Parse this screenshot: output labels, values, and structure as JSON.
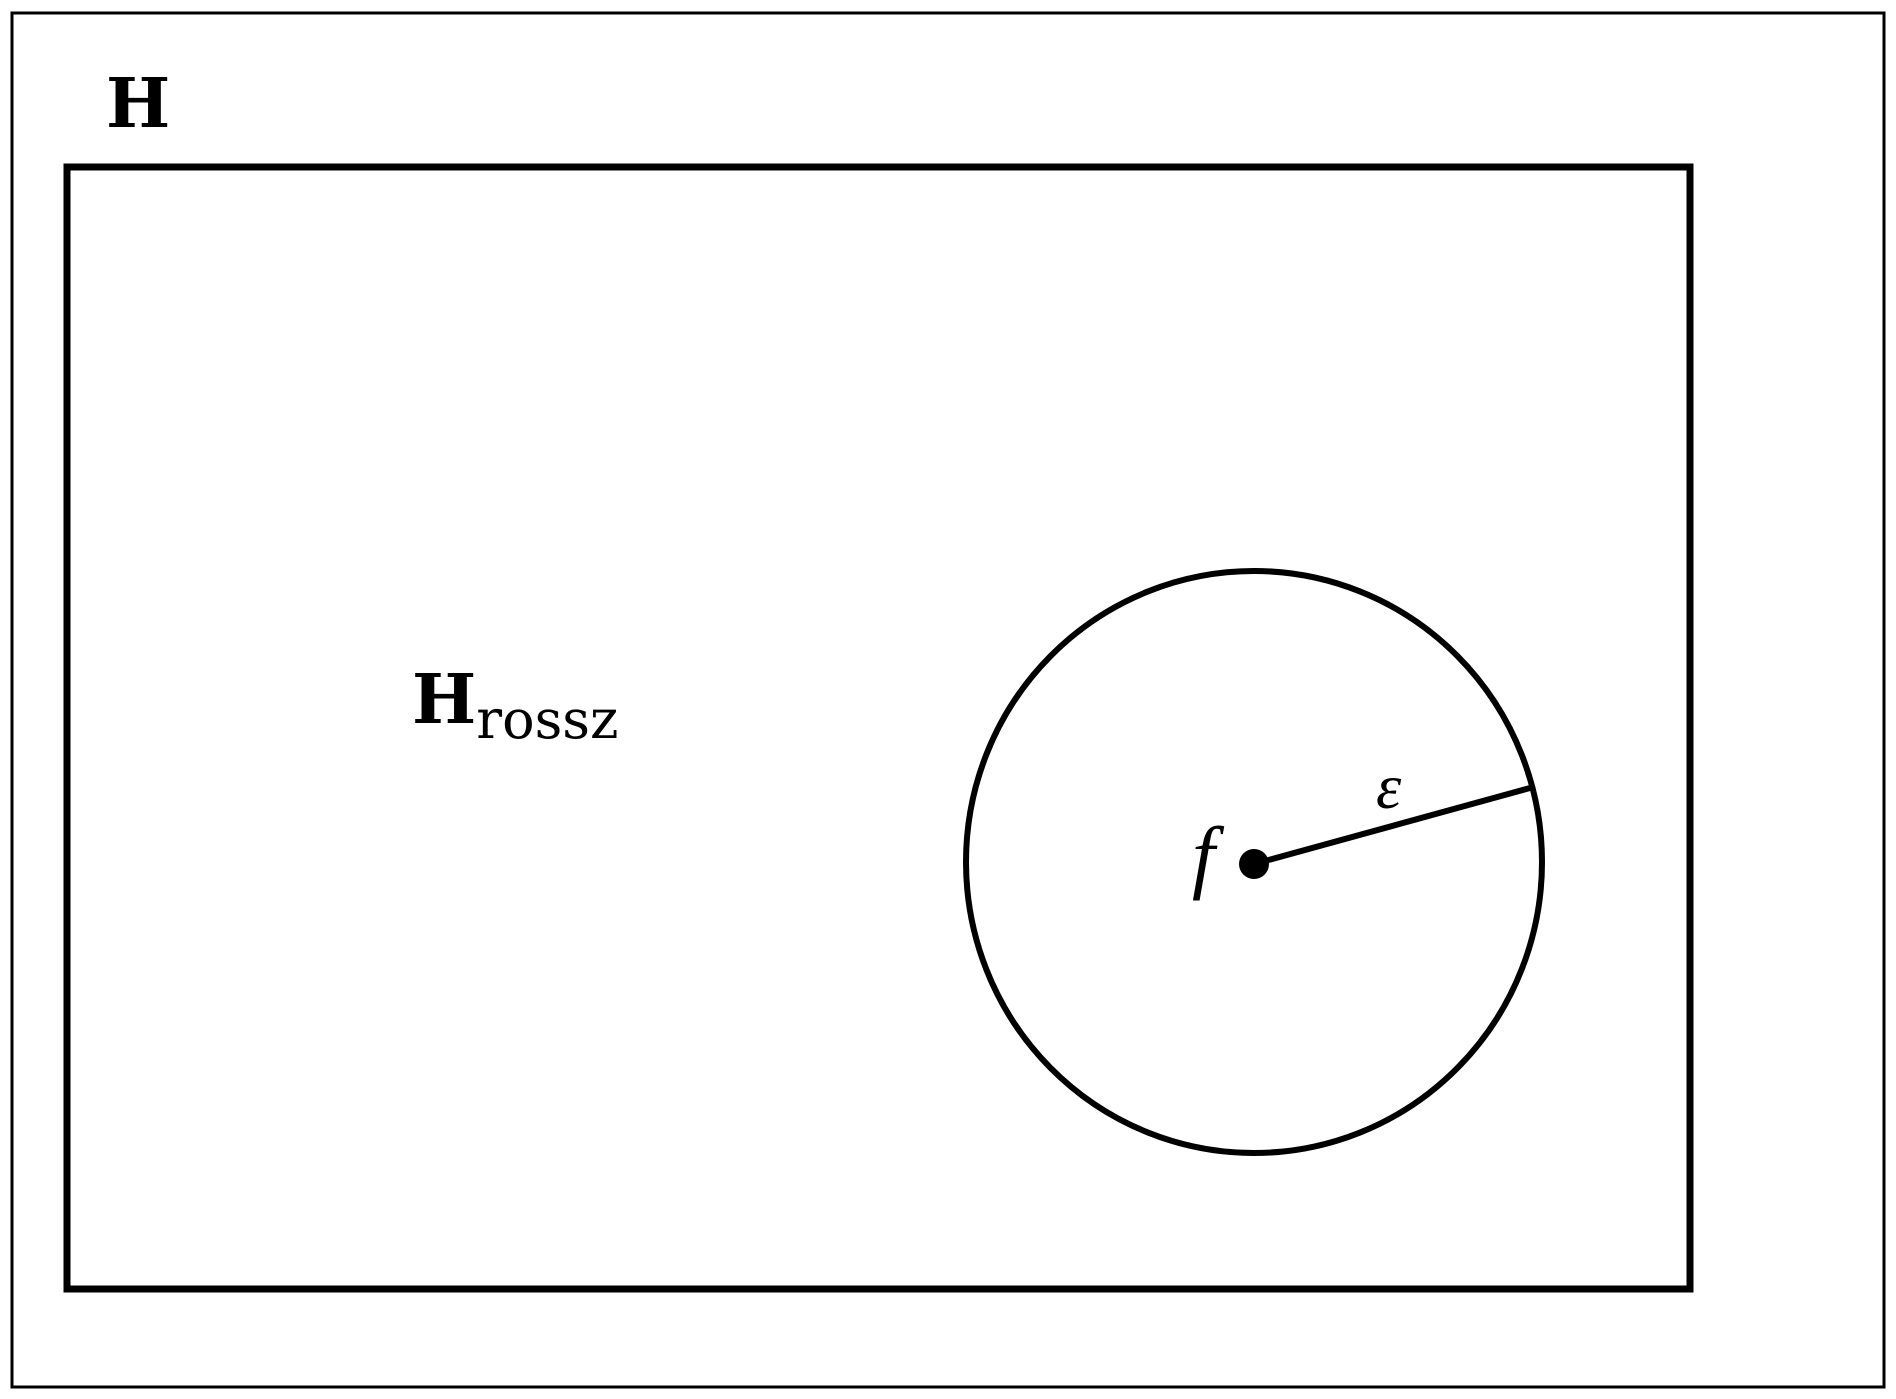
{
  "labels": {
    "outer_set": "H",
    "inner_set_main": "H",
    "inner_set_subscript": "rossz",
    "point": "f",
    "radius": "ε"
  },
  "colors": {
    "stroke": "#000000",
    "background": "#ffffff"
  }
}
